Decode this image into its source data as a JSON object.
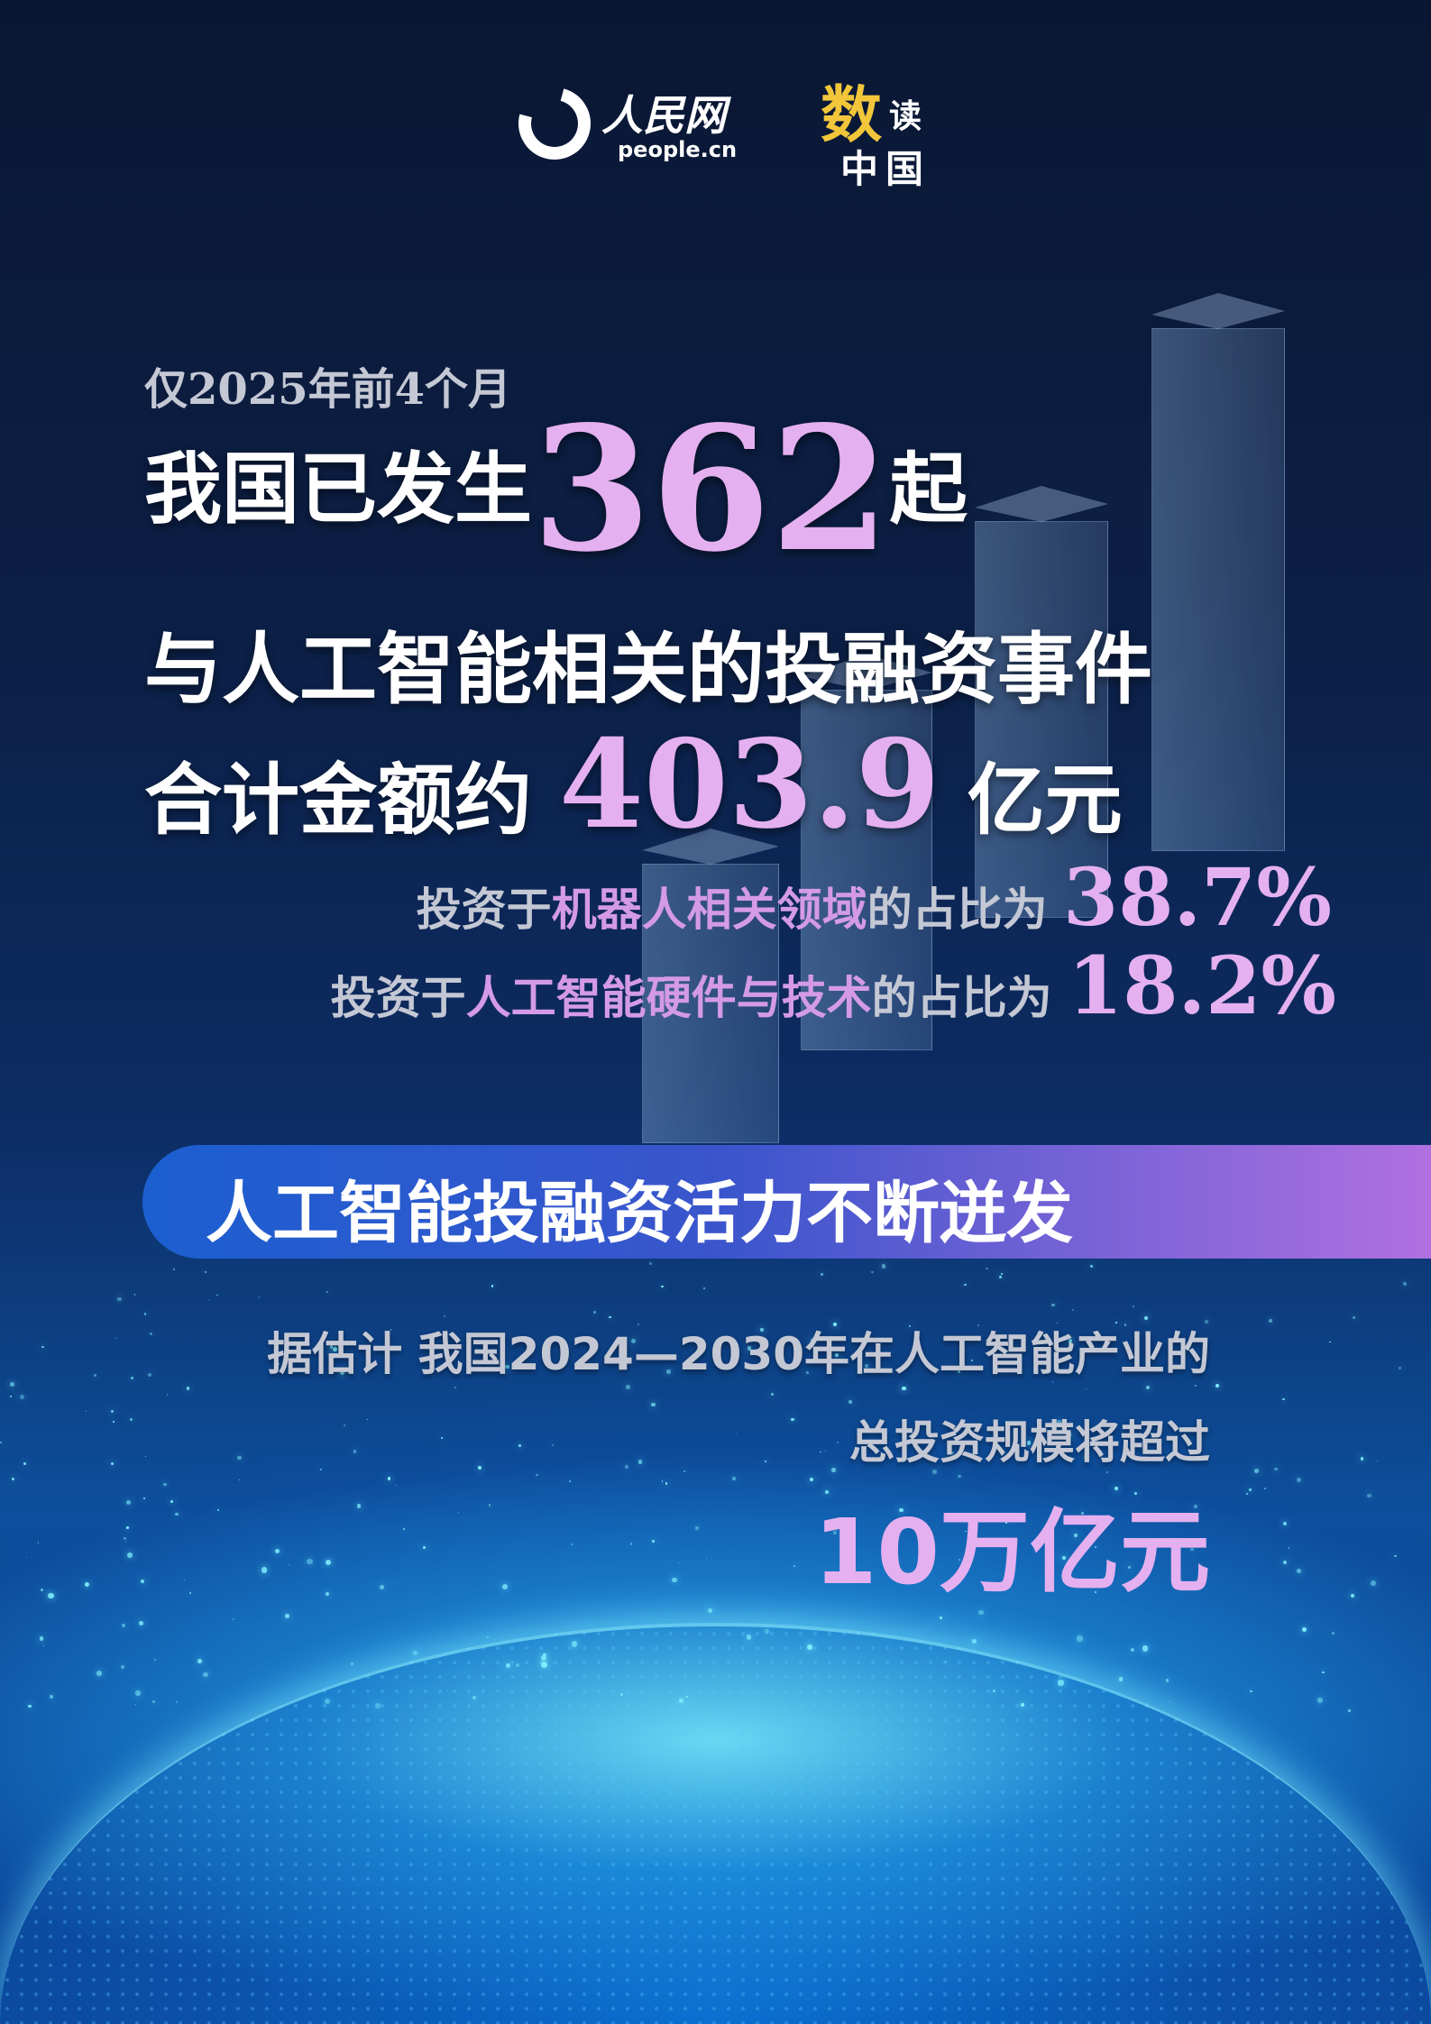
{
  "header": {
    "logo_cn": "人民网",
    "logo_en": "people.cn",
    "series_shu": "数",
    "series_du": "读",
    "series_zg": "中国"
  },
  "headline": {
    "period": "仅2025年前4个月",
    "line1_prefix": "我国已发生",
    "count": "362",
    "line1_suffix": "起",
    "line2": "与人工智能相关的投融资事件",
    "line3_prefix": "合计金额约",
    "amount": "403.9",
    "line3_suffix": "亿元"
  },
  "shares": [
    {
      "prefix": "投资于",
      "field": "机器人相关领域",
      "suffix": "的占比为",
      "value": "38.7%"
    },
    {
      "prefix": "投资于",
      "field": "人工智能硬件与技术",
      "suffix": "的占比为",
      "value": "18.2%"
    }
  ],
  "banner": {
    "title": "人工智能投融资活力不断迸发"
  },
  "estimate": {
    "line1": "据估计  我国2024—2030年在人工智能产业的",
    "line2": "总投资规模将超过",
    "value": "10万亿元"
  },
  "colors": {
    "accent_pink": "#e4b0ef",
    "banner_start": "#1b5fd0",
    "banner_end": "#b070e0",
    "logo_yellow": "#f2c63a"
  }
}
